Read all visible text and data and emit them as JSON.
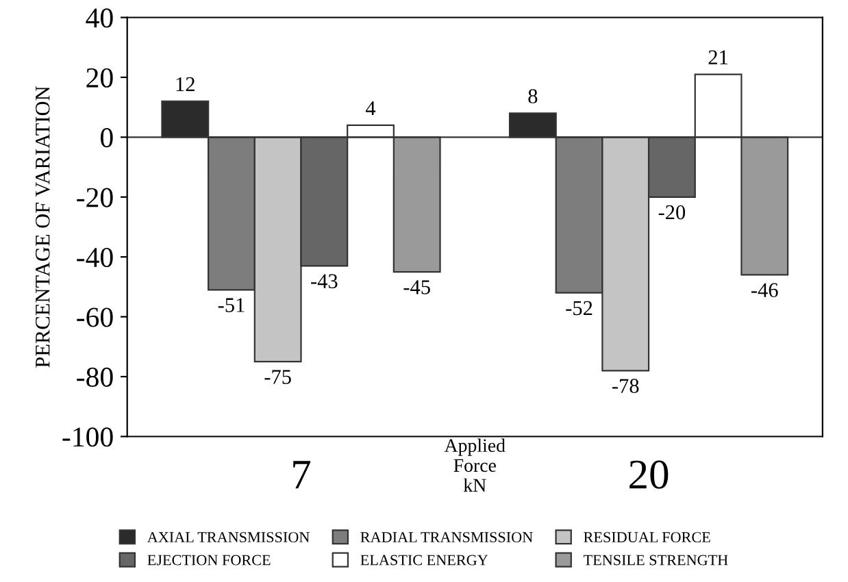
{
  "chart_data": {
    "type": "bar",
    "ylabel": "PERCENTAGE OF VARIATION",
    "xlabel": "Applied\nForce\nkN",
    "categories": [
      "7",
      "20"
    ],
    "series": [
      {
        "name": "AXIAL TRANSMISSION",
        "color": "#2b2b2b",
        "values": [
          12,
          8
        ]
      },
      {
        "name": "RADIAL TRANSMISSION",
        "color": "#7d7d7d",
        "values": [
          -51,
          -52
        ]
      },
      {
        "name": "RESIDUAL FORCE",
        "color": "#c4c4c4",
        "values": [
          -75,
          -78
        ]
      },
      {
        "name": "EJECTION FORCE",
        "color": "#666666",
        "values": [
          -43,
          -20
        ]
      },
      {
        "name": "ELASTIC ENERGY",
        "color": "#ffffff",
        "values": [
          4,
          21
        ]
      },
      {
        "name": "TENSILE STRENGTH",
        "color": "#9a9a9a",
        "values": [
          -45,
          -46
        ]
      }
    ],
    "ylim": [
      -100,
      40
    ],
    "yticks": [
      -100,
      -80,
      -60,
      -40,
      -20,
      0,
      20,
      40
    ],
    "ref_lines": [
      {
        "axis": "y",
        "value": 0
      }
    ],
    "data_labels": true,
    "legend": "bottom"
  }
}
